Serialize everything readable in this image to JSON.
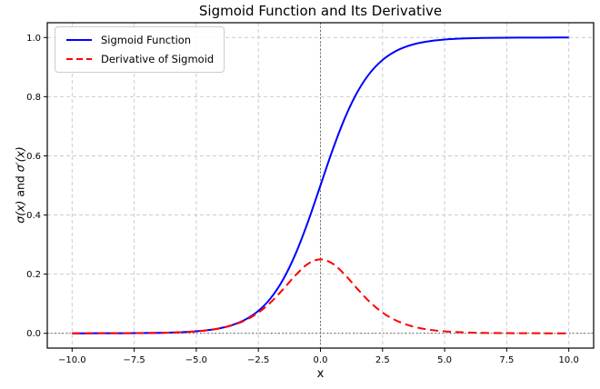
{
  "chart_data": {
    "type": "line",
    "title": "Sigmoid Function and Its Derivative",
    "xlabel": "x",
    "ylabel": "σ(x) and σ′(x)",
    "ylabel_parts": {
      "italic1": "σ(x)",
      "mid": " and ",
      "italic2": "σ′(x)"
    },
    "xlim": [
      -11,
      11
    ],
    "ylim": [
      -0.05,
      1.05
    ],
    "grid": true,
    "legend_position": "upper left",
    "reference_lines": {
      "vertical_x": 0,
      "horizontal_y": 0
    },
    "xticks": {
      "values": [
        -10,
        -7.5,
        -5,
        -2.5,
        0,
        2.5,
        5,
        7.5,
        10
      ],
      "labels": [
        "−10.0",
        "−7.5",
        "−5.0",
        "−2.5",
        "0.0",
        "2.5",
        "5.0",
        "7.5",
        "10.0"
      ]
    },
    "yticks": {
      "values": [
        0,
        0.2,
        0.4,
        0.6,
        0.8,
        1.0
      ],
      "labels": [
        "0.0",
        "0.2",
        "0.4",
        "0.6",
        "0.8",
        "1.0"
      ]
    },
    "colors": {
      "grid": "#cccccc",
      "refline": "#444444",
      "frame": "#000000",
      "tick_text": "#000000"
    },
    "x": [
      -10,
      -9.5,
      -9,
      -8.5,
      -8,
      -7.5,
      -7,
      -6.5,
      -6,
      -5.5,
      -5,
      -4.5,
      -4,
      -3.5,
      -3,
      -2.5,
      -2,
      -1.5,
      -1,
      -0.5,
      0,
      0.5,
      1,
      1.5,
      2,
      2.5,
      3,
      3.5,
      4,
      4.5,
      5,
      5.5,
      6,
      6.5,
      7,
      7.5,
      8,
      8.5,
      9,
      9.5,
      10
    ],
    "series": [
      {
        "name": "Sigmoid Function",
        "color": "#0000ff",
        "style": "solid",
        "values": [
          4.5e-05,
          7.5e-05,
          0.000123,
          0.000203,
          0.000335,
          0.000553,
          0.000911,
          0.001501,
          0.002473,
          0.00407,
          0.006693,
          0.010987,
          0.017986,
          0.029312,
          0.047426,
          0.075858,
          0.119203,
          0.182426,
          0.268941,
          0.377541,
          0.5,
          0.622459,
          0.731059,
          0.817574,
          0.880797,
          0.924142,
          0.952574,
          0.970688,
          0.982014,
          0.989013,
          0.993307,
          0.99593,
          0.997527,
          0.998499,
          0.999089,
          0.999447,
          0.999665,
          0.999797,
          0.999877,
          0.999925,
          0.999955
        ]
      },
      {
        "name": "Derivative of Sigmoid",
        "color": "#ff0000",
        "style": "dashed",
        "values": [
          4.5e-05,
          7.5e-05,
          0.000123,
          0.000203,
          0.000335,
          0.000553,
          0.00091,
          0.001499,
          0.002467,
          0.004053,
          0.006648,
          0.010866,
          0.017663,
          0.028453,
          0.045177,
          0.070104,
          0.104994,
          0.149146,
          0.196612,
          0.235004,
          0.25,
          0.235004,
          0.196612,
          0.149146,
          0.104994,
          0.070104,
          0.045177,
          0.028453,
          0.017663,
          0.010866,
          0.006648,
          0.004053,
          0.002467,
          0.001499,
          0.00091,
          0.000553,
          0.000335,
          0.000203,
          0.000123,
          7.5e-05,
          4.5e-05
        ]
      }
    ]
  }
}
